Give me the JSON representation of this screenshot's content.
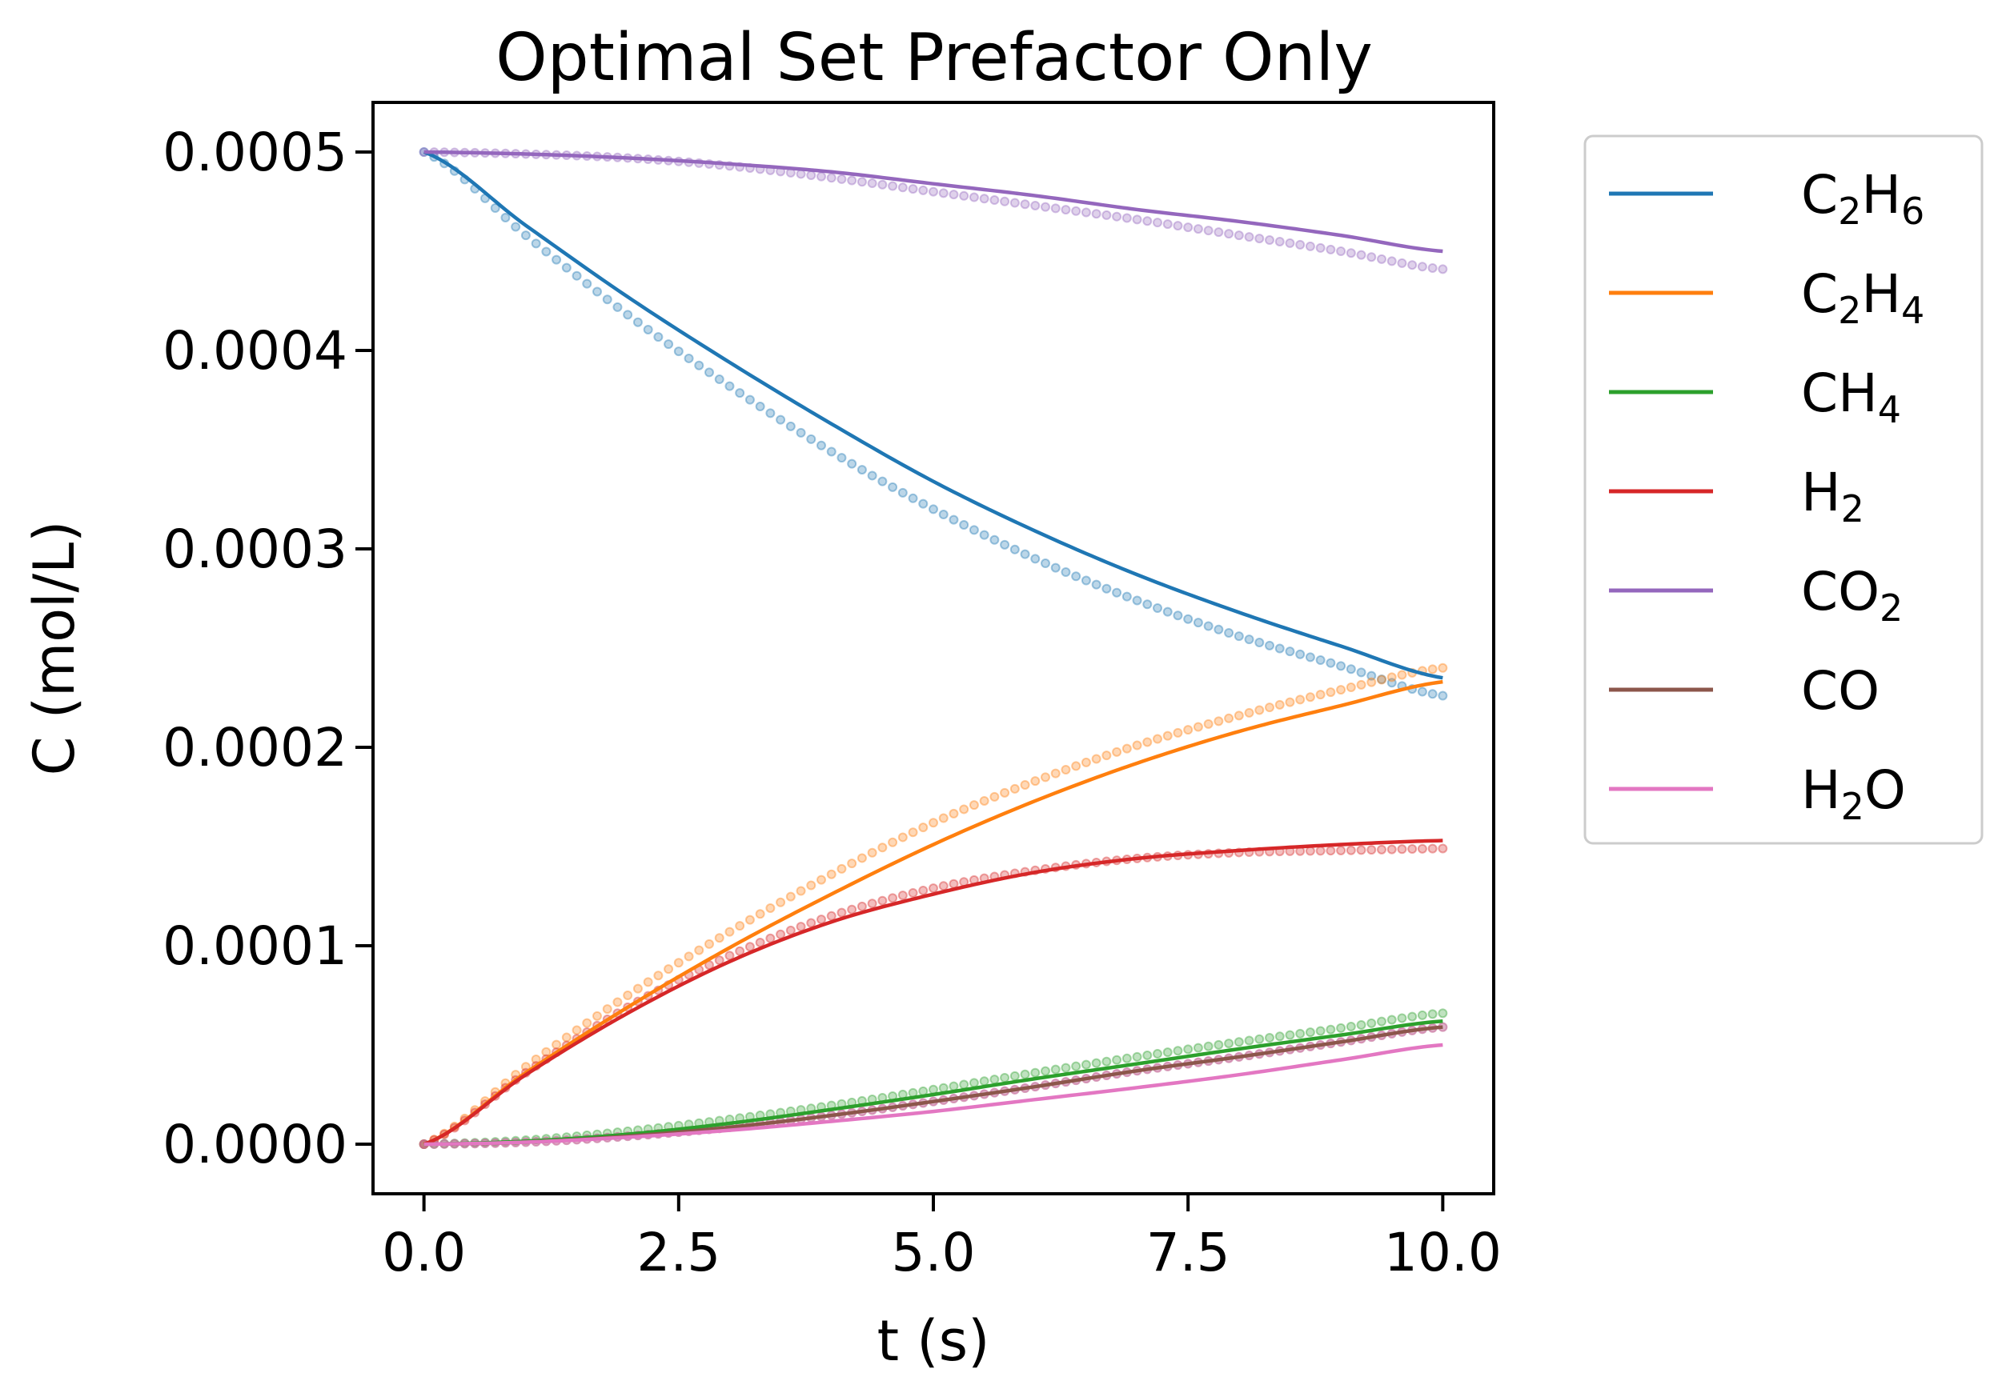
{
  "chart_data": {
    "type": "line",
    "title": "Optimal Set Prefactor Only",
    "xlabel": "t (s)",
    "ylabel": "C (mol/L)",
    "xlim": [
      -0.5,
      10.5
    ],
    "ylim": [
      -2.5e-05,
      0.000525
    ],
    "xticks": [
      0.0,
      2.5,
      5.0,
      7.5,
      10.0
    ],
    "xtick_labels": [
      "0.0",
      "2.5",
      "5.0",
      "7.5",
      "10.0"
    ],
    "yticks": [
      0.0,
      0.0001,
      0.0002,
      0.0003,
      0.0004,
      0.0005
    ],
    "ytick_labels": [
      "0.0000",
      "0.0001",
      "0.0002",
      "0.0003",
      "0.0004",
      "0.0005"
    ],
    "grid": false,
    "legend_position": "outside right, top",
    "x": [
      0,
      1,
      2,
      3,
      4,
      5,
      6,
      7,
      8,
      9,
      10
    ],
    "series": [
      {
        "name": "C2H6",
        "label_parts": [
          [
            "C",
            ""
          ],
          [
            "2",
            "sub"
          ],
          [
            "H",
            ""
          ],
          [
            "6",
            "sub"
          ]
        ],
        "color": "#1f77b4",
        "values": [
          0.0005,
          0.000463,
          0.000427,
          0.000394,
          0.000363,
          0.000334,
          0.000309,
          0.000287,
          0.000268,
          0.000251,
          0.000235
        ],
        "points": [
          0.0005,
          0.000458,
          0.000418,
          0.000382,
          0.000349,
          0.00032,
          0.000295,
          0.000274,
          0.000256,
          0.000241,
          0.000226
        ]
      },
      {
        "name": "C2H4",
        "label_parts": [
          [
            "C",
            ""
          ],
          [
            "2",
            "sub"
          ],
          [
            "H",
            ""
          ],
          [
            "4",
            "sub"
          ]
        ],
        "color": "#ff7f0e",
        "values": [
          0.0,
          3.6e-05,
          6.9e-05,
          9.9e-05,
          0.000126,
          0.000151,
          0.000173,
          0.000192,
          0.000208,
          0.000221,
          0.000233
        ],
        "points": [
          0.0,
          3.9e-05,
          7.5e-05,
          0.000107,
          0.000136,
          0.000162,
          0.000183,
          0.000201,
          0.000216,
          0.000229,
          0.00024
        ]
      },
      {
        "name": "CH4",
        "label_parts": [
          [
            "CH",
            ""
          ],
          [
            "4",
            "sub"
          ]
        ],
        "color": "#2ca02c",
        "values": [
          0.0,
          1.5e-06,
          5e-06,
          1.05e-05,
          1.75e-05,
          2.5e-05,
          3.3e-05,
          4.05e-05,
          4.8e-05,
          5.5e-05,
          6.2e-05
        ],
        "points": [
          0.0,
          2e-06,
          6.5e-06,
          1.25e-05,
          1.95e-05,
          2.75e-05,
          3.6e-05,
          4.4e-05,
          5.15e-05,
          5.85e-05,
          6.6e-05
        ]
      },
      {
        "name": "H2",
        "label_parts": [
          [
            "H",
            ""
          ],
          [
            "2",
            "sub"
          ]
        ],
        "color": "#d62728",
        "values": [
          0.0,
          3.5e-05,
          6.6e-05,
          9.2e-05,
          0.000112,
          0.000126,
          0.000137,
          0.000144,
          0.000148,
          0.000151,
          0.000153
        ],
        "points": [
          0.0,
          3.6e-05,
          6.9e-05,
          9.5e-05,
          0.000115,
          0.000129,
          0.000138,
          0.000144,
          0.000147,
          0.000148,
          0.000149
        ]
      },
      {
        "name": "CO2",
        "label_parts": [
          [
            "CO",
            ""
          ],
          [
            "2",
            "sub"
          ]
        ],
        "color": "#9467bd",
        "values": [
          0.0005,
          0.000499,
          0.000497,
          0.000494,
          0.00049,
          0.000484,
          0.000478,
          0.000471,
          0.000465,
          0.000458,
          0.00045
        ],
        "points": [
          0.0005,
          0.000499,
          0.000497,
          0.000493,
          0.000487,
          0.00048,
          0.000473,
          0.000466,
          0.000458,
          0.00045,
          0.000441
        ]
      },
      {
        "name": "CO",
        "label_parts": [
          [
            "CO",
            ""
          ]
        ],
        "color": "#8c564b",
        "values": [
          0.0,
          1e-06,
          4e-06,
          8.5e-06,
          1.45e-05,
          2.15e-05,
          2.9e-05,
          3.7e-05,
          4.4e-05,
          5.15e-05,
          5.9e-05
        ],
        "points": [
          0.0,
          1e-06,
          4e-06,
          8.5e-06,
          1.45e-05,
          2.15e-05,
          2.9e-05,
          3.7e-05,
          4.4e-05,
          5.15e-05,
          5.9e-05
        ]
      },
      {
        "name": "H2O",
        "label_parts": [
          [
            "H",
            ""
          ],
          [
            "2",
            "sub"
          ],
          [
            "O",
            ""
          ]
        ],
        "color": "#e377c2",
        "values": [
          0.0,
          1e-06,
          3.5e-06,
          7e-06,
          1.15e-05,
          1.65e-05,
          2.25e-05,
          2.85e-05,
          3.5e-05,
          4.25e-05,
          5e-05
        ],
        "points": [
          0.0,
          1e-06,
          4e-06,
          8.5e-06,
          1.45e-05,
          2.15e-05,
          2.9e-05,
          3.7e-05,
          4.4e-05,
          5.15e-05,
          5.9e-05
        ]
      }
    ]
  }
}
